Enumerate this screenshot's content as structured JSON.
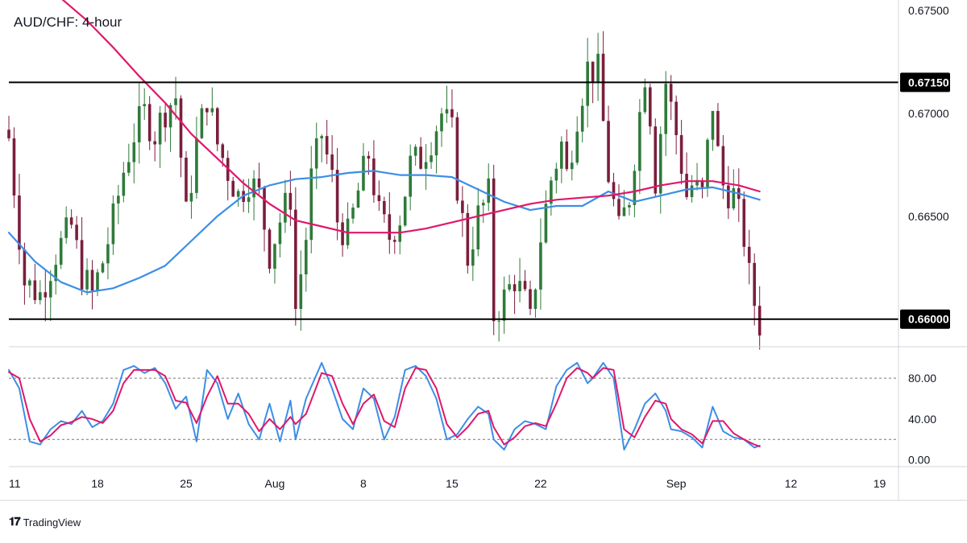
{
  "chart_title": "AUD/CHF: 4-hour",
  "brand": {
    "icon": "tradingview-logo-icon",
    "name": "TradingView"
  },
  "colors": {
    "up_candle": "#2f7a3a",
    "down_candle": "#7b1e3c",
    "ma_fast": "#3c8ee6",
    "ma_slow": "#e0176b",
    "stoch_k": "#3c8ee6",
    "stoch_d": "#e0176b",
    "levels": "#000000"
  },
  "chart_data": [
    {
      "type": "candlestick",
      "title": "AUD/CHF: 4-hour",
      "x_tick_labels": [
        "11",
        "18",
        "25",
        "Aug",
        "8",
        "15",
        "22",
        "Sep",
        "12",
        "19"
      ],
      "y_ticks": [
        "0.66500",
        "0.67000",
        "0.67500"
      ],
      "ylim": [
        0.6587,
        0.6755
      ],
      "horizontal_levels": [
        {
          "value": 0.6715,
          "label": "0.67150"
        },
        {
          "value": 0.66,
          "label": "0.66000"
        }
      ],
      "close_path": [
        [
          0,
          0.6688
        ],
        [
          3,
          0.6618
        ],
        [
          6,
          0.6612
        ],
        [
          9,
          0.6632
        ],
        [
          12,
          0.6645
        ],
        [
          14,
          0.6622
        ],
        [
          16,
          0.6612
        ],
        [
          18,
          0.6628
        ],
        [
          20,
          0.6648
        ],
        [
          22,
          0.6672
        ],
        [
          24,
          0.669
        ],
        [
          26,
          0.67
        ],
        [
          28,
          0.669
        ],
        [
          30,
          0.6702
        ],
        [
          32,
          0.6708
        ],
        [
          34,
          0.665
        ],
        [
          36,
          0.6685
        ],
        [
          38,
          0.6708
        ],
        [
          40,
          0.6685
        ],
        [
          42,
          0.6672
        ],
        [
          44,
          0.666
        ],
        [
          46,
          0.6668
        ],
        [
          48,
          0.666
        ],
        [
          50,
          0.6632
        ],
        [
          52,
          0.6648
        ],
        [
          54,
          0.666
        ],
        [
          55,
          0.6605
        ],
        [
          57,
          0.664
        ],
        [
          58,
          0.6668
        ],
        [
          60,
          0.669
        ],
        [
          62,
          0.6668
        ],
        [
          63,
          0.6648
        ],
        [
          65,
          0.664
        ],
        [
          67,
          0.6662
        ],
        [
          69,
          0.668
        ],
        [
          71,
          0.665
        ],
        [
          73,
          0.664
        ],
        [
          75,
          0.665
        ],
        [
          77,
          0.6675
        ],
        [
          79,
          0.6678
        ],
        [
          81,
          0.6688
        ],
        [
          83,
          0.67
        ],
        [
          85,
          0.669
        ],
        [
          86,
          0.6665
        ],
        [
          88,
          0.663
        ],
        [
          90,
          0.665
        ],
        [
          92,
          0.666
        ],
        [
          93,
          0.6602
        ],
        [
          95,
          0.661
        ],
        [
          97,
          0.662
        ],
        [
          99,
          0.6608
        ],
        [
          100,
          0.6598
        ],
        [
          102,
          0.664
        ],
        [
          104,
          0.6668
        ],
        [
          106,
          0.6685
        ],
        [
          107,
          0.667
        ],
        [
          109,
          0.67
        ],
        [
          111,
          0.6722
        ],
        [
          113,
          0.672
        ],
        [
          115,
          0.667
        ],
        [
          117,
          0.6642
        ],
        [
          119,
          0.666
        ],
        [
          120,
          0.668
        ],
        [
          122,
          0.672
        ],
        [
          123,
          0.67
        ],
        [
          124,
          0.6668
        ],
        [
          126,
          0.6715
        ],
        [
          128,
          0.669
        ],
        [
          130,
          0.666
        ],
        [
          131,
          0.6665
        ],
        [
          133,
          0.666
        ],
        [
          135,
          0.6705
        ],
        [
          136,
          0.668
        ],
        [
          137,
          0.6665
        ],
        [
          139,
          0.666
        ],
        [
          141,
          0.664
        ],
        [
          142,
          0.662
        ],
        [
          143,
          0.6608
        ],
        [
          144,
          0.6598
        ]
      ],
      "series": [
        {
          "name": "",
          "kind": "moving-average-fast",
          "points": [
            [
              0,
              0.6642
            ],
            [
              5,
              0.6628
            ],
            [
              10,
              0.6618
            ],
            [
              15,
              0.6613
            ],
            [
              20,
              0.6615
            ],
            [
              25,
              0.662
            ],
            [
              30,
              0.6626
            ],
            [
              35,
              0.6638
            ],
            [
              40,
              0.665
            ],
            [
              45,
              0.666
            ],
            [
              50,
              0.6665
            ],
            [
              55,
              0.6668
            ],
            [
              60,
              0.6669
            ],
            [
              65,
              0.6671
            ],
            [
              70,
              0.6672
            ],
            [
              75,
              0.667
            ],
            [
              80,
              0.667
            ],
            [
              85,
              0.6669
            ],
            [
              90,
              0.6663
            ],
            [
              95,
              0.6657
            ],
            [
              100,
              0.6653
            ],
            [
              105,
              0.6655
            ],
            [
              110,
              0.6655
            ],
            [
              115,
              0.6662
            ],
            [
              120,
              0.6657
            ],
            [
              125,
              0.666
            ],
            [
              130,
              0.6663
            ],
            [
              135,
              0.6664
            ],
            [
              140,
              0.6661
            ],
            [
              144,
              0.6658
            ]
          ]
        },
        {
          "name": "",
          "kind": "moving-average-slow",
          "points": [
            [
              9,
              0.6758
            ],
            [
              15,
              0.6745
            ],
            [
              20,
              0.6732
            ],
            [
              25,
              0.6718
            ],
            [
              30,
              0.6705
            ],
            [
              35,
              0.669
            ],
            [
              40,
              0.6678
            ],
            [
              45,
              0.6666
            ],
            [
              50,
              0.6656
            ],
            [
              55,
              0.6648
            ],
            [
              60,
              0.6645
            ],
            [
              65,
              0.6642
            ],
            [
              70,
              0.6642
            ],
            [
              75,
              0.6642
            ],
            [
              80,
              0.6644
            ],
            [
              85,
              0.6647
            ],
            [
              90,
              0.665
            ],
            [
              95,
              0.6653
            ],
            [
              100,
              0.6656
            ],
            [
              105,
              0.6658
            ],
            [
              110,
              0.6659
            ],
            [
              115,
              0.666
            ],
            [
              120,
              0.6662
            ],
            [
              125,
              0.6665
            ],
            [
              130,
              0.6667
            ],
            [
              135,
              0.6667
            ],
            [
              140,
              0.6665
            ],
            [
              144,
              0.6662
            ]
          ]
        }
      ]
    },
    {
      "type": "line",
      "title": "",
      "y_ticks": [
        "0.00",
        "40.00",
        "80.00"
      ],
      "ylim": [
        -5,
        110
      ],
      "reference_lines": [
        80,
        20
      ],
      "series": [
        {
          "name": "",
          "kind": "stochastic-k",
          "points": [
            [
              0,
              88
            ],
            [
              2,
              70
            ],
            [
              4,
              18
            ],
            [
              6,
              15
            ],
            [
              8,
              30
            ],
            [
              10,
              38
            ],
            [
              12,
              35
            ],
            [
              14,
              48
            ],
            [
              16,
              32
            ],
            [
              18,
              38
            ],
            [
              20,
              55
            ],
            [
              22,
              88
            ],
            [
              24,
              92
            ],
            [
              26,
              85
            ],
            [
              28,
              90
            ],
            [
              30,
              75
            ],
            [
              32,
              50
            ],
            [
              34,
              62
            ],
            [
              36,
              18
            ],
            [
              38,
              88
            ],
            [
              40,
              75
            ],
            [
              42,
              40
            ],
            [
              44,
              65
            ],
            [
              46,
              35
            ],
            [
              48,
              20
            ],
            [
              50,
              55
            ],
            [
              52,
              18
            ],
            [
              54,
              58
            ],
            [
              55,
              20
            ],
            [
              57,
              60
            ],
            [
              60,
              95
            ],
            [
              62,
              70
            ],
            [
              64,
              40
            ],
            [
              66,
              30
            ],
            [
              68,
              70
            ],
            [
              70,
              60
            ],
            [
              72,
              20
            ],
            [
              74,
              42
            ],
            [
              76,
              88
            ],
            [
              78,
              92
            ],
            [
              80,
              82
            ],
            [
              82,
              60
            ],
            [
              84,
              20
            ],
            [
              86,
              25
            ],
            [
              88,
              40
            ],
            [
              90,
              52
            ],
            [
              92,
              45
            ],
            [
              93,
              20
            ],
            [
              95,
              10
            ],
            [
              97,
              30
            ],
            [
              99,
              38
            ],
            [
              101,
              35
            ],
            [
              103,
              30
            ],
            [
              105,
              72
            ],
            [
              107,
              88
            ],
            [
              109,
              95
            ],
            [
              111,
              75
            ],
            [
              112,
              80
            ],
            [
              114,
              95
            ],
            [
              116,
              80
            ],
            [
              118,
              10
            ],
            [
              120,
              30
            ],
            [
              122,
              55
            ],
            [
              124,
              65
            ],
            [
              126,
              48
            ],
            [
              127,
              30
            ],
            [
              129,
              28
            ],
            [
              131,
              22
            ],
            [
              133,
              12
            ],
            [
              135,
              52
            ],
            [
              137,
              28
            ],
            [
              139,
              22
            ],
            [
              141,
              20
            ],
            [
              143,
              12
            ],
            [
              144,
              14
            ]
          ]
        },
        {
          "name": "",
          "kind": "stochastic-d",
          "points": [
            [
              0,
              86
            ],
            [
              2,
              80
            ],
            [
              4,
              40
            ],
            [
              6,
              18
            ],
            [
              8,
              24
            ],
            [
              10,
              34
            ],
            [
              12,
              37
            ],
            [
              14,
              42
            ],
            [
              16,
              40
            ],
            [
              18,
              36
            ],
            [
              20,
              48
            ],
            [
              22,
              75
            ],
            [
              24,
              88
            ],
            [
              26,
              88
            ],
            [
              28,
              88
            ],
            [
              30,
              82
            ],
            [
              32,
              58
            ],
            [
              34,
              56
            ],
            [
              36,
              36
            ],
            [
              38,
              62
            ],
            [
              40,
              82
            ],
            [
              42,
              55
            ],
            [
              44,
              55
            ],
            [
              46,
              45
            ],
            [
              48,
              28
            ],
            [
              50,
              40
            ],
            [
              52,
              30
            ],
            [
              54,
              42
            ],
            [
              55,
              35
            ],
            [
              57,
              45
            ],
            [
              60,
              85
            ],
            [
              62,
              82
            ],
            [
              64,
              55
            ],
            [
              66,
              35
            ],
            [
              68,
              55
            ],
            [
              70,
              64
            ],
            [
              72,
              38
            ],
            [
              74,
              32
            ],
            [
              76,
              70
            ],
            [
              78,
              90
            ],
            [
              80,
              88
            ],
            [
              82,
              70
            ],
            [
              84,
              35
            ],
            [
              86,
              22
            ],
            [
              88,
              32
            ],
            [
              90,
              45
            ],
            [
              92,
              48
            ],
            [
              93,
              32
            ],
            [
              95,
              15
            ],
            [
              97,
              22
            ],
            [
              99,
              33
            ],
            [
              101,
              36
            ],
            [
              103,
              33
            ],
            [
              105,
              55
            ],
            [
              107,
              80
            ],
            [
              109,
              90
            ],
            [
              111,
              85
            ],
            [
              112,
              80
            ],
            [
              114,
              90
            ],
            [
              116,
              88
            ],
            [
              118,
              30
            ],
            [
              120,
              22
            ],
            [
              122,
              42
            ],
            [
              124,
              58
            ],
            [
              126,
              55
            ],
            [
              127,
              40
            ],
            [
              129,
              30
            ],
            [
              131,
              25
            ],
            [
              133,
              16
            ],
            [
              135,
              38
            ],
            [
              137,
              38
            ],
            [
              139,
              26
            ],
            [
              141,
              20
            ],
            [
              143,
              15
            ],
            [
              144,
              13
            ]
          ]
        }
      ]
    }
  ]
}
